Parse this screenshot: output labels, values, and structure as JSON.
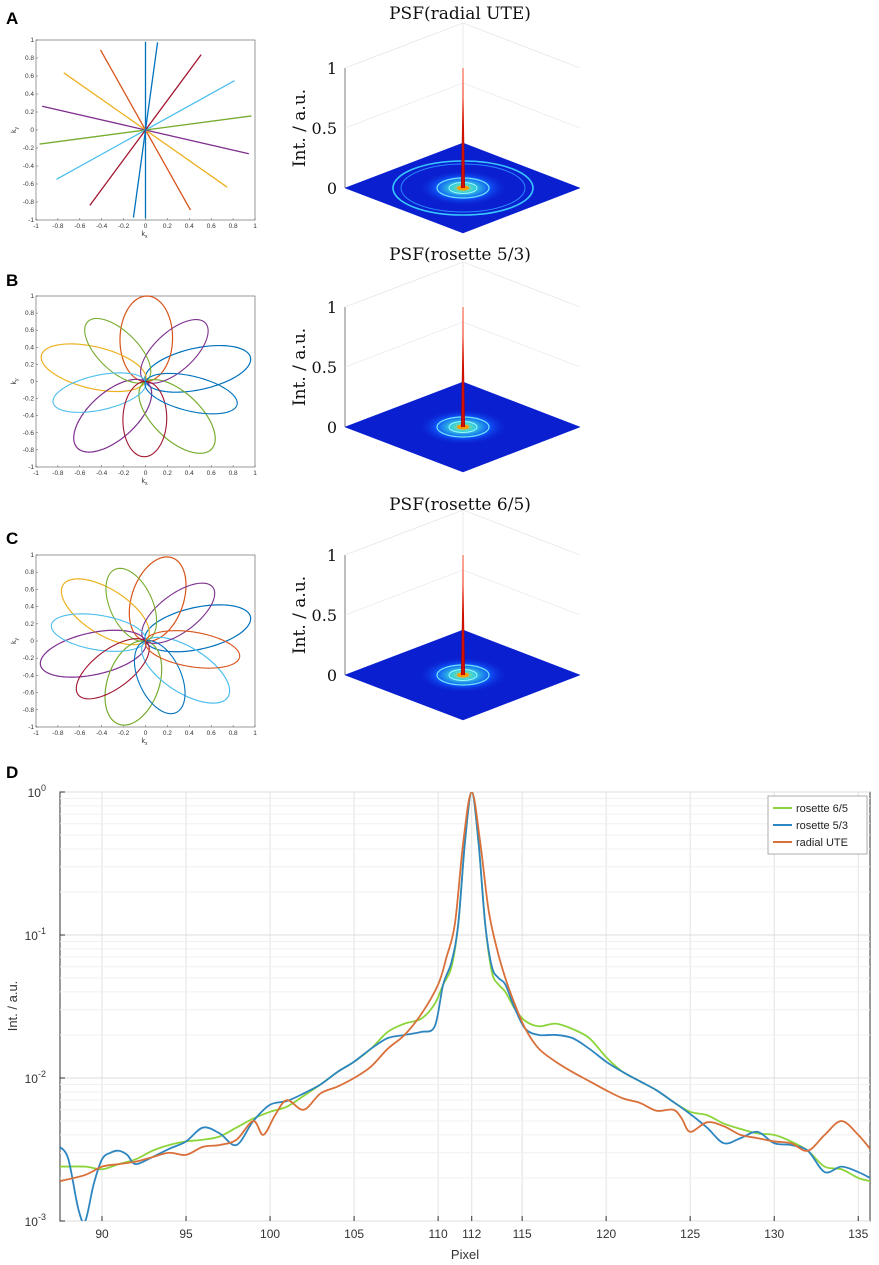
{
  "panels": {
    "a": "A",
    "b": "B",
    "c": "C",
    "d": "D"
  },
  "kspace_ticks": [
    "-1",
    "-0.8",
    "-0.6",
    "-0.4",
    "-0.2",
    "0",
    "0.2",
    "0.4",
    "0.6",
    "0.8",
    "1"
  ],
  "kspace_xlabel": "k",
  "kspace_xlabel_sub": "x",
  "kspace_ylabel": "k",
  "kspace_ylabel_sub": "y",
  "line_colors": [
    "#0072BD",
    "#D95319",
    "#EDB120",
    "#7E2F8E",
    "#77AC30",
    "#4DBEEE",
    "#A2142F"
  ],
  "psf_ylabel": "Int. / a.u.",
  "psf_z_ticks": [
    "1",
    "0.5",
    "0"
  ],
  "psf_titles": [
    "PSF(radial UTE)",
    "PSF(rosette 5/3)",
    "PSF(rosette 6/5)"
  ],
  "trajectories": [
    {
      "type": "radial",
      "spokes": 8
    },
    {
      "type": "rosette",
      "petals": 5,
      "ratio": "5/3"
    },
    {
      "type": "rosette",
      "petals": 6,
      "ratio": "6/5"
    }
  ],
  "chart_data": {
    "type": "line",
    "xlabel": "Pixel",
    "ylabel": "Int. / a.u.",
    "yscale": "log",
    "xlim": [
      87.5,
      135.7
    ],
    "ylim": [
      0.001,
      1
    ],
    "x_ticks": [
      "90",
      "95",
      "100",
      "105",
      "110",
      "112",
      "115",
      "120",
      "125",
      "130",
      "135"
    ],
    "y_ticks": [
      {
        "base": "10",
        "exp": "0"
      },
      {
        "base": "10",
        "exp": "-1"
      },
      {
        "base": "10",
        "exp": "-2"
      },
      {
        "base": "10",
        "exp": "-3"
      }
    ],
    "grid": true,
    "legend_position": "top-right",
    "series": [
      {
        "name": "rosette 6/5",
        "color": "#8BD43A",
        "points": [
          [
            87.5,
            0.0024
          ],
          [
            89,
            0.0024
          ],
          [
            90,
            0.0023
          ],
          [
            91,
            0.0025
          ],
          [
            92,
            0.0027
          ],
          [
            93,
            0.0031
          ],
          [
            94,
            0.0034
          ],
          [
            95,
            0.0036
          ],
          [
            96,
            0.0037
          ],
          [
            97,
            0.0039
          ],
          [
            98,
            0.0045
          ],
          [
            99,
            0.0052
          ],
          [
            100,
            0.0058
          ],
          [
            101,
            0.0063
          ],
          [
            102,
            0.0075
          ],
          [
            103,
            0.009
          ],
          [
            104,
            0.011
          ],
          [
            105,
            0.013
          ],
          [
            106,
            0.016
          ],
          [
            107,
            0.021
          ],
          [
            108,
            0.024
          ],
          [
            109,
            0.026
          ],
          [
            109.8,
            0.033
          ],
          [
            110.3,
            0.045
          ],
          [
            110.8,
            0.06
          ],
          [
            111.2,
            0.12
          ],
          [
            111.6,
            0.45
          ],
          [
            112,
            1.0
          ],
          [
            112.4,
            0.45
          ],
          [
            112.8,
            0.12
          ],
          [
            113.2,
            0.055
          ],
          [
            113.6,
            0.045
          ],
          [
            114,
            0.04
          ],
          [
            114.6,
            0.03
          ],
          [
            115.2,
            0.025
          ],
          [
            116,
            0.023
          ],
          [
            117,
            0.024
          ],
          [
            118,
            0.022
          ],
          [
            119,
            0.019
          ],
          [
            120,
            0.014
          ],
          [
            121,
            0.011
          ],
          [
            122,
            0.0095
          ],
          [
            123,
            0.0082
          ],
          [
            124,
            0.0068
          ],
          [
            125,
            0.0058
          ],
          [
            126,
            0.0055
          ],
          [
            127,
            0.0048
          ],
          [
            128,
            0.0044
          ],
          [
            129,
            0.0041
          ],
          [
            130,
            0.004
          ],
          [
            131,
            0.0036
          ],
          [
            132,
            0.0031
          ],
          [
            133,
            0.0024
          ],
          [
            134,
            0.0023
          ],
          [
            135,
            0.002
          ],
          [
            135.7,
            0.0019
          ]
        ]
      },
      {
        "name": "rosette 5/3",
        "color": "#2E86C1",
        "points": [
          [
            87.5,
            0.0033
          ],
          [
            88,
            0.0027
          ],
          [
            88.6,
            0.0012
          ],
          [
            89,
            0.001
          ],
          [
            89.5,
            0.0018
          ],
          [
            90,
            0.0027
          ],
          [
            90.5,
            0.003
          ],
          [
            91,
            0.0031
          ],
          [
            91.5,
            0.0029
          ],
          [
            92,
            0.0025
          ],
          [
            93,
            0.0028
          ],
          [
            94,
            0.0032
          ],
          [
            95,
            0.0036
          ],
          [
            96,
            0.0045
          ],
          [
            97,
            0.0041
          ],
          [
            98,
            0.0034
          ],
          [
            99,
            0.005
          ],
          [
            100,
            0.0065
          ],
          [
            101,
            0.0069
          ],
          [
            102,
            0.0078
          ],
          [
            103,
            0.009
          ],
          [
            104,
            0.011
          ],
          [
            105,
            0.013
          ],
          [
            106,
            0.016
          ],
          [
            107,
            0.019
          ],
          [
            108,
            0.02
          ],
          [
            109,
            0.021
          ],
          [
            109.8,
            0.023
          ],
          [
            110.3,
            0.045
          ],
          [
            110.8,
            0.065
          ],
          [
            111.2,
            0.12
          ],
          [
            111.6,
            0.45
          ],
          [
            112,
            1.0
          ],
          [
            112.4,
            0.45
          ],
          [
            112.8,
            0.12
          ],
          [
            113.2,
            0.06
          ],
          [
            113.6,
            0.05
          ],
          [
            114,
            0.045
          ],
          [
            114.6,
            0.03
          ],
          [
            115.2,
            0.022
          ],
          [
            116,
            0.02
          ],
          [
            117,
            0.02
          ],
          [
            118,
            0.019
          ],
          [
            119,
            0.016
          ],
          [
            120,
            0.013
          ],
          [
            121,
            0.011
          ],
          [
            122,
            0.0095
          ],
          [
            123,
            0.0082
          ],
          [
            124,
            0.0068
          ],
          [
            125,
            0.0056
          ],
          [
            126,
            0.0045
          ],
          [
            127,
            0.0035
          ],
          [
            128,
            0.0038
          ],
          [
            129,
            0.0042
          ],
          [
            130,
            0.0035
          ],
          [
            131,
            0.0034
          ],
          [
            132,
            0.0031
          ],
          [
            133,
            0.0022
          ],
          [
            134,
            0.0024
          ],
          [
            135,
            0.0022
          ],
          [
            135.7,
            0.002
          ]
        ]
      },
      {
        "name": "radial UTE",
        "color": "#D9703A",
        "points": [
          [
            87.5,
            0.0019
          ],
          [
            89,
            0.0021
          ],
          [
            90,
            0.0024
          ],
          [
            91,
            0.0025
          ],
          [
            92,
            0.0026
          ],
          [
            93,
            0.0028
          ],
          [
            94,
            0.003
          ],
          [
            95,
            0.0029
          ],
          [
            96,
            0.0033
          ],
          [
            97,
            0.0034
          ],
          [
            98,
            0.0037
          ],
          [
            99,
            0.005
          ],
          [
            99.6,
            0.004
          ],
          [
            100.3,
            0.0055
          ],
          [
            101,
            0.007
          ],
          [
            102,
            0.006
          ],
          [
            103,
            0.0078
          ],
          [
            104,
            0.0087
          ],
          [
            105,
            0.01
          ],
          [
            106,
            0.012
          ],
          [
            107,
            0.016
          ],
          [
            108,
            0.02
          ],
          [
            109,
            0.028
          ],
          [
            110,
            0.045
          ],
          [
            110.5,
            0.07
          ],
          [
            111,
            0.12
          ],
          [
            111.5,
            0.45
          ],
          [
            112,
            1.0
          ],
          [
            112.5,
            0.45
          ],
          [
            113,
            0.15
          ],
          [
            113.5,
            0.08
          ],
          [
            114,
            0.05
          ],
          [
            114.6,
            0.032
          ],
          [
            115.2,
            0.022
          ],
          [
            116,
            0.016
          ],
          [
            117,
            0.013
          ],
          [
            118,
            0.011
          ],
          [
            119,
            0.0095
          ],
          [
            120,
            0.0082
          ],
          [
            121,
            0.0072
          ],
          [
            122,
            0.0067
          ],
          [
            123,
            0.0059
          ],
          [
            124,
            0.006
          ],
          [
            124.5,
            0.0052
          ],
          [
            125,
            0.0042
          ],
          [
            126,
            0.0049
          ],
          [
            127,
            0.0046
          ],
          [
            128,
            0.004
          ],
          [
            129,
            0.0038
          ],
          [
            130,
            0.0036
          ],
          [
            131,
            0.0035
          ],
          [
            132,
            0.0031
          ],
          [
            133,
            0.004
          ],
          [
            134,
            0.005
          ],
          [
            135,
            0.004
          ],
          [
            135.7,
            0.0032
          ]
        ]
      }
    ]
  }
}
